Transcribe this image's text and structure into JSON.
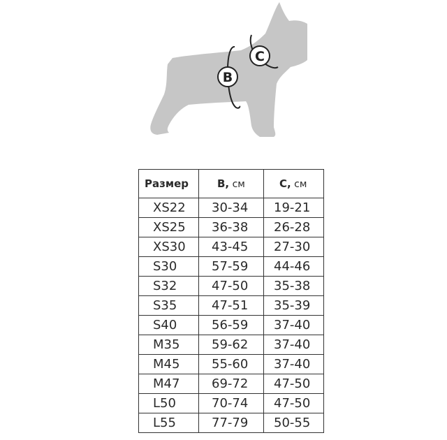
{
  "illustration": {
    "label_b": "B",
    "label_c": "C",
    "silhouette_color": "#c6c6c6"
  },
  "table": {
    "headers": [
      {
        "bold": "Размер",
        "unit": ""
      },
      {
        "bold": "B,",
        "unit": " см"
      },
      {
        "bold": "C,",
        "unit": " см"
      }
    ],
    "rows": [
      [
        "XS22",
        "30-34",
        "19-21"
      ],
      [
        "XS25",
        "36-38",
        "26-28"
      ],
      [
        "XS30",
        "43-45",
        "27-30"
      ],
      [
        "S30",
        "57-59",
        "44-46"
      ],
      [
        "S32",
        "47-50",
        "35-38"
      ],
      [
        "S35",
        "47-51",
        "35-39"
      ],
      [
        "S40",
        "56-59",
        "37-40"
      ],
      [
        "M35",
        "59-62",
        "37-40"
      ],
      [
        "M45",
        "55-60",
        "37-40"
      ],
      [
        "M47",
        "69-72",
        "47-50"
      ],
      [
        "L50",
        "70-74",
        "47-50"
      ],
      [
        "L55",
        "77-79",
        "50-55"
      ]
    ]
  }
}
